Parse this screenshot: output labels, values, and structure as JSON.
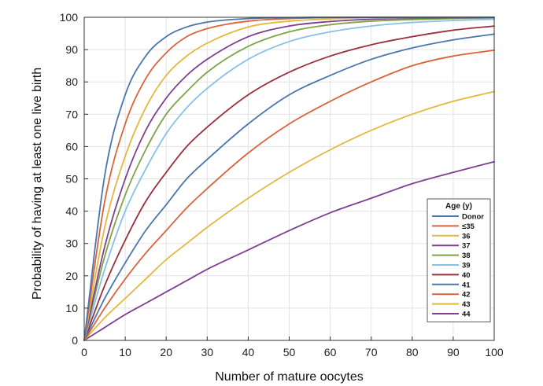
{
  "chart_data": {
    "type": "line",
    "title": "",
    "xlabel": "Number of mature oocytes",
    "ylabel": "Probability of having at least one live birth",
    "xlim": [
      0,
      100
    ],
    "ylim": [
      0,
      100
    ],
    "xticks": [
      0,
      10,
      20,
      30,
      40,
      50,
      60,
      70,
      80,
      90,
      100
    ],
    "yticks": [
      0,
      10,
      20,
      30,
      40,
      50,
      60,
      70,
      80,
      90,
      100
    ],
    "grid": true,
    "legend": {
      "title": "Age (y)",
      "placement": "bottom-right"
    },
    "x": [
      0,
      5,
      10,
      15,
      20,
      25,
      30,
      40,
      50,
      60,
      70,
      80,
      90,
      100
    ],
    "series": [
      {
        "name": "Donor",
        "color": "#4a76b0",
        "values": [
          0,
          51,
          76,
          88,
          94,
          97,
          98.5,
          99.6,
          99.9,
          100,
          100,
          100,
          100,
          100
        ]
      },
      {
        "name": "≤35",
        "color": "#d9643a",
        "values": [
          0,
          43,
          67,
          81,
          89,
          94,
          96.5,
          98.8,
          99.6,
          99.9,
          100,
          100,
          100,
          100
        ]
      },
      {
        "name": "36",
        "color": "#e4b83e",
        "values": [
          0,
          35,
          57,
          72,
          82,
          88,
          92,
          97,
          98.8,
          99.5,
          99.8,
          99.9,
          100,
          100
        ]
      },
      {
        "name": "37",
        "color": "#7e3f92",
        "values": [
          0,
          29,
          50,
          65,
          75,
          82,
          87,
          94,
          97.3,
          98.7,
          99.4,
          99.7,
          99.9,
          100
        ]
      },
      {
        "name": "38",
        "color": "#7ea444",
        "values": [
          0,
          26,
          45,
          59,
          70,
          77,
          83,
          91,
          95.5,
          97.7,
          98.8,
          99.3,
          99.6,
          99.8
        ]
      },
      {
        "name": "39",
        "color": "#86c1e6",
        "values": [
          0,
          22,
          40,
          53,
          64,
          72,
          78,
          87,
          92.5,
          95.5,
          97.3,
          98.4,
          99,
          99.4
        ]
      },
      {
        "name": "40",
        "color": "#9c2f3c",
        "values": [
          0,
          17,
          31,
          43,
          52,
          60,
          66,
          76,
          83,
          88,
          91.5,
          94,
          96,
          97.3
        ]
      },
      {
        "name": "41",
        "color": "#4a76b0",
        "values": [
          0,
          13,
          24,
          34,
          42,
          50,
          56,
          67,
          76,
          82,
          87,
          90.5,
          93,
          94.8
        ]
      },
      {
        "name": "42",
        "color": "#d9643a",
        "values": [
          0,
          10,
          19,
          27,
          34,
          41,
          47,
          58,
          67,
          74,
          80,
          85,
          88,
          89.8
        ]
      },
      {
        "name": "43",
        "color": "#e4b83e",
        "values": [
          0,
          7,
          13,
          19,
          25,
          30,
          35,
          44,
          52,
          59,
          65,
          70,
          74,
          77
        ]
      },
      {
        "name": "44",
        "color": "#7e3f92",
        "values": [
          0,
          4,
          8,
          11.5,
          15,
          18.5,
          22,
          28,
          34,
          39.5,
          44,
          48.5,
          52,
          55.3
        ]
      }
    ]
  }
}
